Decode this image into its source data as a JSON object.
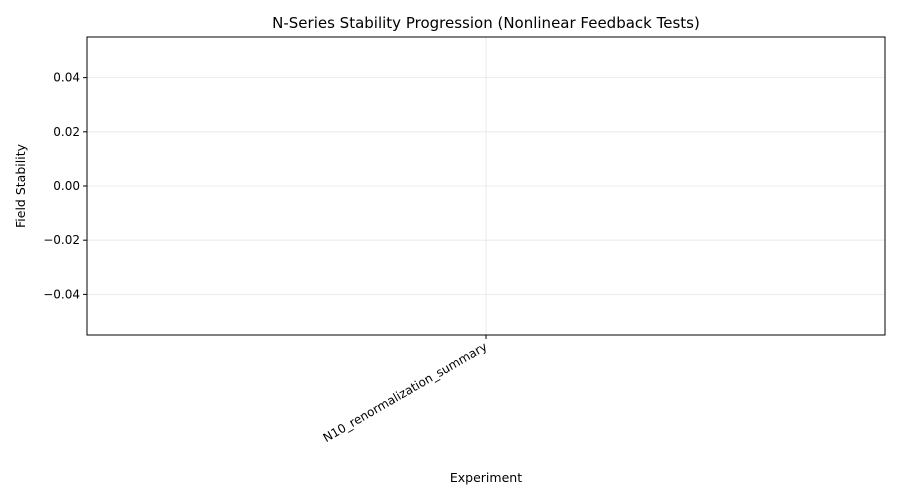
{
  "chart_data": {
    "type": "line",
    "title": "N-Series Stability Progression (Nonlinear Feedback Tests)",
    "xlabel": "Experiment",
    "ylabel": "Field Stability",
    "categories": [
      "N10_renormalization_summary"
    ],
    "series": [
      {
        "values": [
          null
        ]
      }
    ],
    "ylim": [
      -0.055,
      0.055
    ],
    "yticks": [
      -0.04,
      -0.02,
      0.0,
      0.02,
      0.04
    ],
    "ytick_labels": [
      "−0.04",
      "−0.02",
      "0.00",
      "0.02",
      "0.04"
    ],
    "grid": true,
    "legend": "none"
  }
}
